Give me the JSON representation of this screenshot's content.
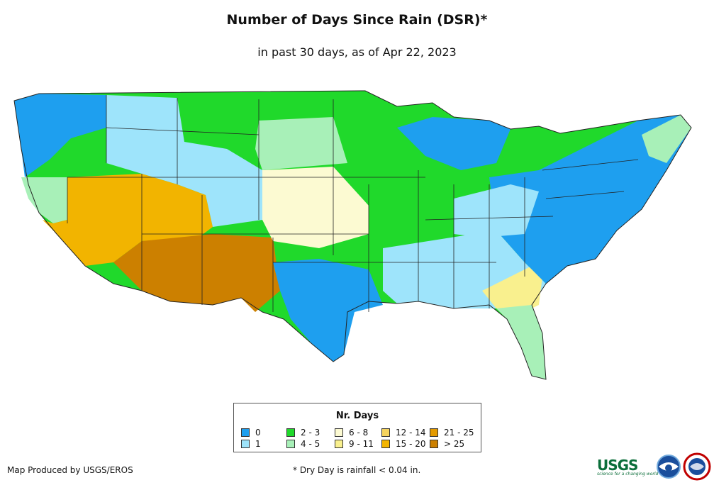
{
  "title": "Number of Days Since Rain (DSR)*",
  "subtitle": "in past 30 days, as of Apr 22, 2023",
  "legend": {
    "title": "Nr. Days",
    "items": [
      {
        "label": "0",
        "color": "#1E9FEF"
      },
      {
        "label": "1",
        "color": "#9EE4FB"
      },
      {
        "label": "2 - 3",
        "color": "#20D92B"
      },
      {
        "label": "4 - 5",
        "color": "#A8F0B8"
      },
      {
        "label": "6 - 8",
        "color": "#FCFAD2"
      },
      {
        "label": "9 - 11",
        "color": "#F9F08E"
      },
      {
        "label": "12 - 14",
        "color": "#F5D35E"
      },
      {
        "label": "15 - 20",
        "color": "#F2B400"
      },
      {
        "label": "21 - 25",
        "color": "#E39A00"
      },
      {
        "label": "> 25",
        "color": "#CC8000"
      }
    ]
  },
  "footer": {
    "credit": "Map Produced by USGS/EROS",
    "note": "* Dry Day is rainfall < 0.04 in.",
    "usgs_logo": "USGS",
    "usgs_tagline": "science for a changing world"
  },
  "icons": [
    "usgs-logo",
    "noaa-logo",
    "nws-logo"
  ]
}
